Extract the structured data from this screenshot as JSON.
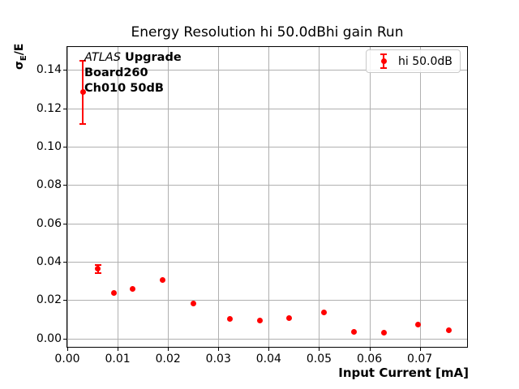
{
  "chart_data": {
    "type": "scatter",
    "title": "Energy Resolution hi 50.0dBhi gain Run",
    "xlabel": "Input Current [mA]",
    "ylabel": "σE/E",
    "ylabel_parts": {
      "sigma": "σ",
      "subscript": "E",
      "suffix": "/E"
    },
    "xlim": [
      0,
      0.0794
    ],
    "ylim": [
      -0.0043,
      0.152
    ],
    "grid": true,
    "grid_color": "#b0b0b0",
    "axis_color": "#000000",
    "xtick_values": [
      0.0,
      0.01,
      0.02,
      0.03,
      0.04,
      0.05,
      0.06,
      0.07
    ],
    "xtick_labels": [
      "0.00",
      "0.01",
      "0.02",
      "0.03",
      "0.04",
      "0.05",
      "0.06",
      "0.07"
    ],
    "ytick_values": [
      0.0,
      0.02,
      0.04,
      0.06,
      0.08,
      0.1,
      0.12,
      0.14
    ],
    "ytick_labels": [
      "0.00",
      "0.02",
      "0.04",
      "0.06",
      "0.08",
      "0.10",
      "0.12",
      "0.14"
    ],
    "legend": {
      "position": "upper right",
      "label": "hi 50.0dB",
      "marker_color": "#ff0000"
    },
    "annotation": {
      "line1_italic": "ATLAS",
      "line1_rest": " Upgrade",
      "line2": "Board260",
      "line3": "Ch010 50dB"
    },
    "series": [
      {
        "name": "hi 50.0dB",
        "color": "#ff0000",
        "marker": "circle-with-errorbar",
        "points": [
          {
            "x": 0.0031,
            "y": 0.1285,
            "yerr": 0.0165
          },
          {
            "x": 0.0061,
            "y": 0.0364,
            "yerr": 0.0021
          },
          {
            "x": 0.0092,
            "y": 0.024,
            "yerr": 0.0004
          },
          {
            "x": 0.013,
            "y": 0.0261,
            "yerr": 0.0004
          },
          {
            "x": 0.019,
            "y": 0.0306,
            "yerr": 0.0004
          },
          {
            "x": 0.0251,
            "y": 0.0184,
            "yerr": 0.0004
          },
          {
            "x": 0.0323,
            "y": 0.0101,
            "yerr": 0.0004
          },
          {
            "x": 0.0382,
            "y": 0.0093,
            "yerr": 0.0004
          },
          {
            "x": 0.0441,
            "y": 0.0109,
            "yerr": 0.0004
          },
          {
            "x": 0.0509,
            "y": 0.0137,
            "yerr": 0.0004
          },
          {
            "x": 0.057,
            "y": 0.0036,
            "yerr": 0.0004
          },
          {
            "x": 0.0629,
            "y": 0.003,
            "yerr": 0.0004
          },
          {
            "x": 0.0697,
            "y": 0.0074,
            "yerr": 0.0004
          },
          {
            "x": 0.0758,
            "y": 0.0043,
            "yerr": 0.0004
          }
        ]
      }
    ]
  }
}
